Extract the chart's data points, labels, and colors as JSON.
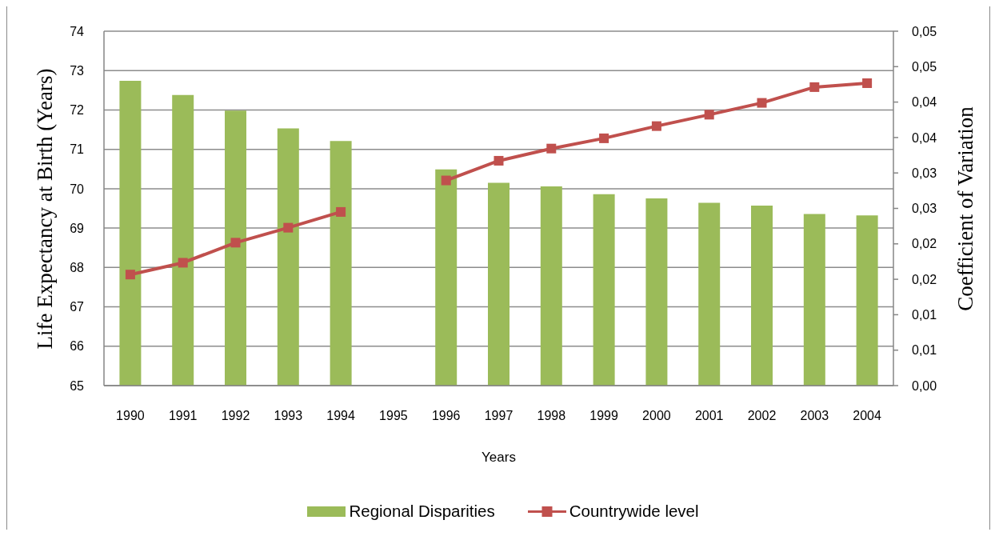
{
  "chart_data": {
    "type": "bar",
    "xlabel": "Years",
    "ylabel": "Life Expectancy at Birth (Years)",
    "y2label": "Coefficient of Variation",
    "categories": [
      "1990",
      "1991",
      "1992",
      "1993",
      "1994",
      "1995",
      "1996",
      "1997",
      "1998",
      "1999",
      "2000",
      "2001",
      "2002",
      "2003",
      "2004"
    ],
    "series": [
      {
        "name": "Regional Disparities",
        "axis": "y2",
        "color": "#9bbb59",
        "values": [
          0.043,
          0.041,
          0.0388,
          0.0363,
          0.0345,
          null,
          0.0305,
          0.0286,
          0.0281,
          0.027,
          0.0264,
          0.0258,
          0.0254,
          0.0242,
          0.024
        ]
      },
      {
        "name": "Countrywide level",
        "type": "line",
        "color": "#c0504d",
        "values": [
          67.82,
          68.12,
          68.63,
          69.01,
          69.41,
          null,
          70.21,
          70.71,
          71.02,
          71.28,
          71.59,
          71.88,
          72.18,
          72.58,
          72.68
        ]
      }
    ],
    "ylim": [
      65,
      74
    ],
    "yticks": [
      65,
      66,
      67,
      68,
      69,
      70,
      71,
      72,
      73,
      74
    ],
    "y2lim": [
      0,
      0.05
    ],
    "y2ticks": [
      {
        "value": 0,
        "label": "0,00"
      },
      {
        "value": 0.005,
        "label": "0,01"
      },
      {
        "value": 0.01,
        "label": "0,01"
      },
      {
        "value": 0.015,
        "label": "0,02"
      },
      {
        "value": 0.02,
        "label": "0,02"
      },
      {
        "value": 0.025,
        "label": "0,03"
      },
      {
        "value": 0.03,
        "label": "0,03"
      },
      {
        "value": 0.035,
        "label": "0,04"
      },
      {
        "value": 0.04,
        "label": "0,04"
      },
      {
        "value": 0.045,
        "label": "0,05"
      },
      {
        "value": 0.05,
        "label": "0,05"
      }
    ],
    "grid": "y",
    "legend": "bottom",
    "marker": "square"
  }
}
